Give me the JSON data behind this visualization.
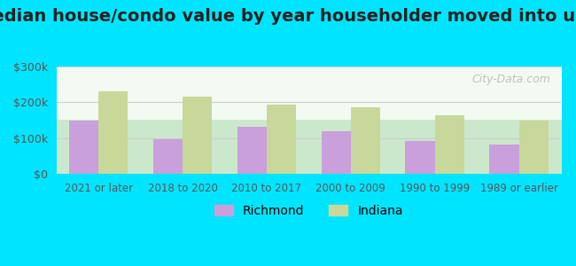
{
  "title": "Median house/condo value by year householder moved into unit",
  "categories": [
    "2021 or later",
    "2018 to 2020",
    "2010 to 2017",
    "2000 to 2009",
    "1990 to 1999",
    "1989 or earlier"
  ],
  "richmond_values": [
    150000,
    97000,
    132000,
    120000,
    93000,
    83000
  ],
  "indiana_values": [
    232000,
    215000,
    193000,
    187000,
    165000,
    148000
  ],
  "richmond_color": "#c9a0dc",
  "indiana_color": "#c8d89a",
  "background_outer": "#00e5ff",
  "background_inner_top": "#e8f5e9",
  "background_inner_bottom": "#f0f8f0",
  "ylim": [
    0,
    300000
  ],
  "yticks": [
    0,
    100000,
    200000,
    300000
  ],
  "ytick_labels": [
    "$0",
    "$100k",
    "$200k",
    "$300k"
  ],
  "legend_labels": [
    "Richmond",
    "Indiana"
  ],
  "watermark": "City-Data.com",
  "title_fontsize": 14,
  "bar_width": 0.35,
  "grid_color": "#cccccc"
}
